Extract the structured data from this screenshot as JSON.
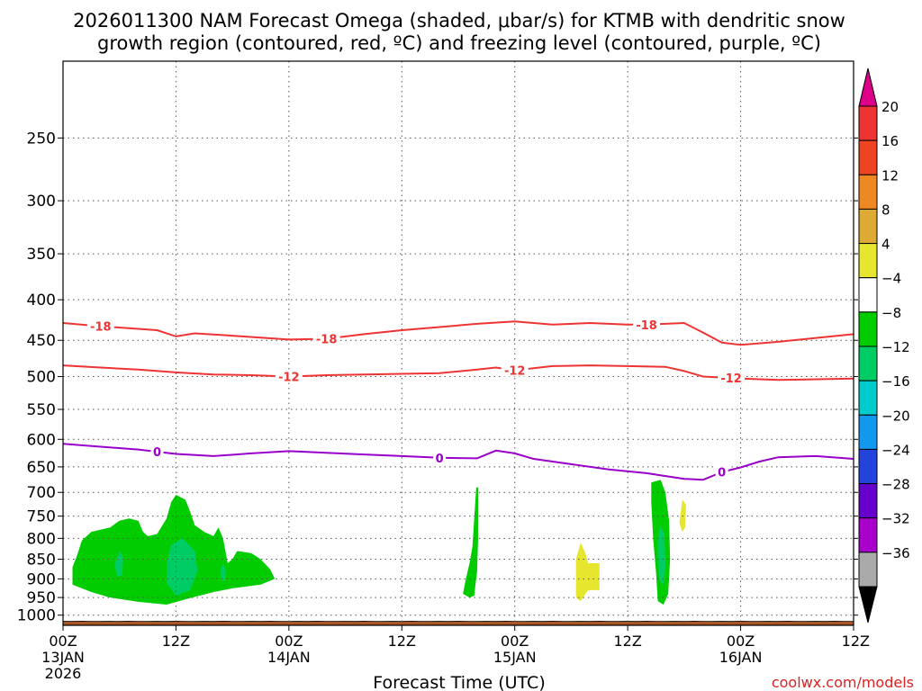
{
  "chart_data": {
    "type": "time-height cross-section",
    "title_line1": "2026011300 NAM Forecast Omega (shaded, μbar/s) for KTMB with dendritic snow",
    "title_line2": "growth region (contoured, red, ºC) and freezing level (contoured, purple, ºC)",
    "xlabel": "Forecast Time (UTC)",
    "credit": "coolwx.com/models",
    "x_range_hours": [
      0,
      84
    ],
    "x_ticks": [
      {
        "hour": 0,
        "label": "00Z",
        "date": "13JAN",
        "year": "2026"
      },
      {
        "hour": 12,
        "label": "12Z",
        "date": "",
        "year": ""
      },
      {
        "hour": 24,
        "label": "00Z",
        "date": "14JAN",
        "year": ""
      },
      {
        "hour": 36,
        "label": "12Z",
        "date": "",
        "year": ""
      },
      {
        "hour": 48,
        "label": "00Z",
        "date": "15JAN",
        "year": ""
      },
      {
        "hour": 60,
        "label": "12Z",
        "date": "",
        "year": ""
      },
      {
        "hour": 72,
        "label": "00Z",
        "date": "16JAN",
        "year": ""
      },
      {
        "hour": 84,
        "label": "12Z",
        "date": "",
        "year": ""
      }
    ],
    "y_ticks_hpa": [
      250,
      300,
      350,
      400,
      450,
      500,
      550,
      600,
      650,
      700,
      750,
      800,
      850,
      900,
      950,
      1000
    ],
    "y_range_hpa": [
      200,
      1030
    ],
    "contours": [
      {
        "name": "-18 C isotherm",
        "label": "-18",
        "color": "#ee3333",
        "label_hours": [
          4,
          28,
          62
        ],
        "points": [
          [
            0,
            428
          ],
          [
            4,
            432
          ],
          [
            10,
            437
          ],
          [
            12,
            445
          ],
          [
            14,
            441
          ],
          [
            18,
            444
          ],
          [
            24,
            449
          ],
          [
            28,
            448
          ],
          [
            32,
            442
          ],
          [
            36,
            437
          ],
          [
            40,
            433
          ],
          [
            44,
            429
          ],
          [
            48,
            426
          ],
          [
            52,
            430
          ],
          [
            56,
            428
          ],
          [
            60,
            430
          ],
          [
            62,
            430
          ],
          [
            66,
            428
          ],
          [
            68,
            440
          ],
          [
            70,
            453
          ],
          [
            72,
            456
          ],
          [
            76,
            452
          ],
          [
            84,
            442
          ]
        ]
      },
      {
        "name": "-12 C isotherm",
        "label": "-12",
        "color": "#ee3333",
        "label_hours": [
          24,
          48,
          71
        ],
        "points": [
          [
            0,
            484
          ],
          [
            4,
            487
          ],
          [
            8,
            490
          ],
          [
            12,
            494
          ],
          [
            16,
            497
          ],
          [
            20,
            498
          ],
          [
            24,
            500
          ],
          [
            28,
            498
          ],
          [
            32,
            497
          ],
          [
            36,
            496
          ],
          [
            40,
            495
          ],
          [
            44,
            490
          ],
          [
            46,
            487
          ],
          [
            48,
            491
          ],
          [
            52,
            485
          ],
          [
            56,
            484
          ],
          [
            60,
            485
          ],
          [
            64,
            486
          ],
          [
            66,
            492
          ],
          [
            68,
            500
          ],
          [
            72,
            503
          ],
          [
            76,
            505
          ],
          [
            84,
            503
          ]
        ]
      },
      {
        "name": "0 C freezing level",
        "label": "0",
        "color": "#9900cc",
        "label_hours": [
          10,
          40,
          70
        ],
        "points": [
          [
            0,
            608
          ],
          [
            4,
            613
          ],
          [
            8,
            618
          ],
          [
            12,
            626
          ],
          [
            16,
            630
          ],
          [
            20,
            625
          ],
          [
            24,
            621
          ],
          [
            28,
            624
          ],
          [
            32,
            627
          ],
          [
            36,
            630
          ],
          [
            40,
            633
          ],
          [
            44,
            634
          ],
          [
            46,
            620
          ],
          [
            48,
            625
          ],
          [
            50,
            635
          ],
          [
            54,
            645
          ],
          [
            58,
            655
          ],
          [
            62,
            662
          ],
          [
            66,
            673
          ],
          [
            68,
            675
          ],
          [
            70,
            660
          ],
          [
            72,
            651
          ],
          [
            74,
            640
          ],
          [
            76,
            632
          ],
          [
            80,
            630
          ],
          [
            84,
            635
          ]
        ]
      }
    ],
    "omega_regions": [
      {
        "color": "#00cc00",
        "range_ubar_s": "-8 to -4",
        "points": [
          [
            1,
            870
          ],
          [
            1.5,
            840
          ],
          [
            2,
            805
          ],
          [
            3,
            785
          ],
          [
            5,
            775
          ],
          [
            6,
            760
          ],
          [
            7,
            755
          ],
          [
            8,
            760
          ],
          [
            8.5,
            785
          ],
          [
            9,
            795
          ],
          [
            10,
            790
          ],
          [
            11,
            755
          ],
          [
            11.5,
            720
          ],
          [
            12,
            705
          ],
          [
            13,
            715
          ],
          [
            13.5,
            740
          ],
          [
            14,
            770
          ],
          [
            15,
            785
          ],
          [
            16,
            795
          ],
          [
            16.5,
            775
          ],
          [
            17,
            800
          ],
          [
            17.5,
            860
          ],
          [
            18,
            850
          ],
          [
            18.5,
            830
          ],
          [
            20,
            835
          ],
          [
            21,
            850
          ],
          [
            22,
            875
          ],
          [
            22.5,
            900
          ],
          [
            21,
            915
          ],
          [
            18,
            925
          ],
          [
            16,
            935
          ],
          [
            13,
            955
          ],
          [
            11,
            970
          ],
          [
            8,
            962
          ],
          [
            5,
            950
          ],
          [
            3,
            935
          ],
          [
            1,
            915
          ]
        ]
      },
      {
        "color": "#00cc66",
        "range_ubar_s": "-12 to -8",
        "points": [
          [
            5.5,
            860
          ],
          [
            6,
            830
          ],
          [
            6.4,
            845
          ],
          [
            6.3,
            890
          ],
          [
            5.8,
            895
          ],
          [
            5.5,
            870
          ]
        ]
      },
      {
        "color": "#00cc66",
        "range_ubar_s": "-12 to -8",
        "points": [
          [
            11,
            860
          ],
          [
            11.5,
            815
          ],
          [
            12.7,
            800
          ],
          [
            14,
            830
          ],
          [
            14.3,
            880
          ],
          [
            13.5,
            930
          ],
          [
            12,
            945
          ],
          [
            11,
            910
          ]
        ]
      },
      {
        "color": "#00cc66",
        "range_ubar_s": "-12 to -8",
        "points": [
          [
            16.7,
            880
          ],
          [
            17,
            860
          ],
          [
            17.3,
            880
          ],
          [
            17.2,
            905
          ],
          [
            16.9,
            905
          ]
        ]
      },
      {
        "color": "#00cc00",
        "range_ubar_s": "-8 to -4",
        "points": [
          [
            42.5,
            940
          ],
          [
            42.8,
            900
          ],
          [
            43.2,
            860
          ],
          [
            43.5,
            820
          ],
          [
            43.9,
            690
          ],
          [
            44.1,
            690
          ],
          [
            44.1,
            800
          ],
          [
            44,
            880
          ],
          [
            43.8,
            920
          ],
          [
            43.7,
            945
          ],
          [
            43.2,
            950
          ]
        ]
      },
      {
        "color": "#00cc00",
        "range_ubar_s": "-8 to -4",
        "points": [
          [
            62.5,
            680
          ],
          [
            63.5,
            675
          ],
          [
            64,
            700
          ],
          [
            64.4,
            760
          ],
          [
            64.5,
            850
          ],
          [
            64.3,
            940
          ],
          [
            63.8,
            970
          ],
          [
            63.2,
            960
          ],
          [
            63,
            880
          ],
          [
            62.7,
            800
          ],
          [
            62.5,
            720
          ]
        ]
      },
      {
        "color": "#00cc66",
        "range_ubar_s": "-12 to -8",
        "points": [
          [
            63.2,
            800
          ],
          [
            63.5,
            770
          ],
          [
            63.9,
            790
          ],
          [
            64,
            870
          ],
          [
            63.8,
            915
          ],
          [
            63.4,
            905
          ],
          [
            63.2,
            860
          ]
        ]
      },
      {
        "color": "#e6e62e",
        "range_ubar_s": "4 to 8",
        "points": [
          [
            54.5,
            850
          ],
          [
            55,
            810
          ],
          [
            55.5,
            835
          ],
          [
            55.8,
            860
          ],
          [
            57,
            860
          ],
          [
            57,
            930
          ],
          [
            55.8,
            930
          ],
          [
            55,
            960
          ],
          [
            54.5,
            950
          ],
          [
            54.5,
            900
          ]
        ]
      },
      {
        "color": "#e6e62e",
        "range_ubar_s": "4 to 8",
        "points": [
          [
            65.5,
            765
          ],
          [
            65.8,
            715
          ],
          [
            66.2,
            725
          ],
          [
            66.1,
            775
          ],
          [
            65.8,
            785
          ]
        ]
      }
    ],
    "terrain": {
      "color": "#a85528",
      "top_hpa": 1018
    },
    "colorbar": {
      "units": "μbar/s",
      "segments": [
        {
          "color": "#dd0088"
        },
        {
          "color": "#ee3333",
          "label": "20"
        },
        {
          "color": "#ee4422",
          "label": "16"
        },
        {
          "color": "#ee8822",
          "label": "12"
        },
        {
          "color": "#ddaa33",
          "label": "8"
        },
        {
          "color": "#e6e62e",
          "label": "4"
        },
        {
          "color": "#ffffff",
          "label": "−4"
        },
        {
          "color": "#00cc00",
          "label": "−8"
        },
        {
          "color": "#00cc66",
          "label": "−12"
        },
        {
          "color": "#00cccc",
          "label": "−16"
        },
        {
          "color": "#1199ee",
          "label": "−20"
        },
        {
          "color": "#2244dd",
          "label": "−24"
        },
        {
          "color": "#6600cc",
          "label": "−28"
        },
        {
          "color": "#aa00cc",
          "label": "−32"
        },
        {
          "color": "#aaaaaa",
          "label": "−36"
        },
        {
          "color": "#000000"
        }
      ]
    }
  }
}
